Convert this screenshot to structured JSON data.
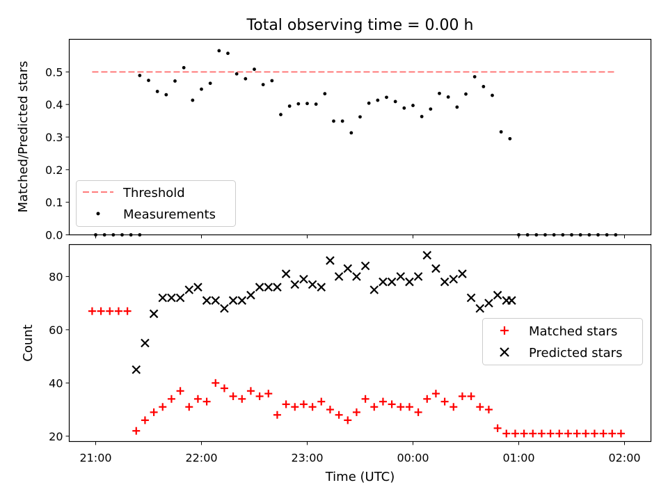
{
  "chart_data": [
    {
      "type": "scatter",
      "title": "Total observing time = 0.00 h",
      "xlabel": "",
      "ylabel": "Matched/Predicted stars",
      "xlim": [
        "20:45",
        "02:15"
      ],
      "ylim": [
        0,
        0.6
      ],
      "yticks": [
        0,
        0.1,
        0.2,
        0.3,
        0.4,
        0.5
      ],
      "ytick_labels": [
        "0.0",
        "0.1",
        "0.2",
        "0.3",
        "0.4",
        "0.5"
      ],
      "grid": false,
      "legend_position": "lower-left",
      "threshold": {
        "name": "Threshold",
        "value": 0.5,
        "x_start": "20:58",
        "x_end": "01:55",
        "color": "#ff7b7b",
        "style": "dashed"
      },
      "series": [
        {
          "name": "Measurements",
          "color": "#000000",
          "marker": "dot",
          "x": [
            "21:00",
            "21:05",
            "21:10",
            "21:15",
            "21:20",
            "21:25",
            "21:30",
            "21:35",
            "21:40",
            "21:45",
            "21:50",
            "21:55",
            "22:00",
            "22:05",
            "22:10",
            "22:15",
            "22:20",
            "22:25",
            "22:30",
            "22:35",
            "22:40",
            "22:45",
            "22:50",
            "22:55",
            "23:00",
            "23:05",
            "23:10",
            "23:15",
            "23:20",
            "23:25",
            "23:30",
            "23:35",
            "23:40",
            "23:45",
            "23:50",
            "23:55",
            "00:00",
            "00:05",
            "00:10",
            "00:15",
            "00:20",
            "00:25",
            "00:30",
            "00:35",
            "00:40",
            "00:45",
            "00:50",
            "00:55",
            "01:00",
            "01:05",
            "01:10",
            "01:15",
            "01:20",
            "01:25",
            "01:30",
            "01:35",
            "01:40",
            "01:45",
            "01:50",
            "01:55",
            "21:25"
          ],
          "y": [
            0,
            0,
            0,
            0,
            0,
            0.489,
            0.474,
            0.44,
            0.43,
            0.472,
            0.513,
            0.413,
            0.447,
            0.465,
            0.565,
            0.557,
            0.494,
            0.479,
            0.508,
            0.461,
            0.473,
            0.369,
            0.395,
            0.402,
            0.403,
            0.401,
            0.433,
            0.349,
            0.349,
            0.313,
            0.362,
            0.404,
            0.413,
            0.422,
            0.409,
            0.389,
            0.397,
            0.363,
            0.386,
            0.434,
            0.423,
            0.392,
            0.432,
            0.485,
            0.455,
            0.428,
            0.316,
            0.295,
            0,
            0,
            0,
            0,
            0,
            0,
            0,
            0,
            0,
            0,
            0,
            0,
            0
          ]
        }
      ]
    },
    {
      "type": "scatter",
      "title": "",
      "xlabel": "Time (UTC)",
      "ylabel": "Count",
      "xlim": [
        "20:45",
        "02:15"
      ],
      "ylim": [
        18,
        92
      ],
      "yticks": [
        20,
        40,
        60,
        80
      ],
      "ytick_labels": [
        "20",
        "40",
        "60",
        "80"
      ],
      "xticks": [
        "21:00",
        "22:00",
        "23:00",
        "00:00",
        "01:00",
        "02:00"
      ],
      "grid": false,
      "legend_position": "right",
      "series": [
        {
          "name": "Matched stars",
          "color": "#ff0000",
          "marker": "plus",
          "x": [
            "20:58",
            "21:03",
            "21:08",
            "21:13",
            "21:18",
            "21:23",
            "21:28",
            "21:33",
            "21:38",
            "21:43",
            "21:48",
            "21:53",
            "21:58",
            "22:03",
            "22:08",
            "22:13",
            "22:18",
            "22:23",
            "22:28",
            "22:33",
            "22:38",
            "22:43",
            "22:48",
            "22:53",
            "22:58",
            "23:03",
            "23:08",
            "23:13",
            "23:18",
            "23:23",
            "23:28",
            "23:33",
            "23:38",
            "23:43",
            "23:48",
            "23:53",
            "23:58",
            "00:03",
            "00:08",
            "00:13",
            "00:18",
            "00:23",
            "00:28",
            "00:33",
            "00:38",
            "00:43",
            "00:48",
            "00:53",
            "00:58",
            "01:03",
            "01:08",
            "01:13",
            "01:18",
            "01:28",
            "01:33",
            "01:38",
            "01:43",
            "01:48",
            "01:53",
            "01:58",
            "01:23"
          ],
          "y": [
            67,
            67,
            67,
            67,
            67,
            22,
            26,
            29,
            31,
            34,
            37,
            31,
            34,
            33,
            40,
            38,
            35,
            34,
            37,
            35,
            36,
            28,
            32,
            31,
            32,
            31,
            33,
            30,
            28,
            26,
            29,
            34,
            31,
            33,
            32,
            31,
            31,
            29,
            34,
            36,
            33,
            31,
            35,
            35,
            31,
            30,
            23,
            21,
            21,
            21,
            21,
            21,
            21,
            21,
            21,
            21,
            21,
            21,
            21,
            21,
            21
          ]
        },
        {
          "name": "Predicted stars",
          "color": "#000000",
          "marker": "x",
          "x": [
            "21:23",
            "21:28",
            "21:33",
            "21:38",
            "21:43",
            "21:48",
            "21:53",
            "21:58",
            "22:03",
            "22:08",
            "22:13",
            "22:18",
            "22:23",
            "22:28",
            "22:33",
            "22:38",
            "22:43",
            "22:48",
            "22:53",
            "22:58",
            "23:03",
            "23:08",
            "23:13",
            "23:18",
            "23:23",
            "23:28",
            "23:33",
            "23:38",
            "23:43",
            "23:48",
            "23:53",
            "23:58",
            "00:03",
            "00:08",
            "00:13",
            "00:18",
            "00:23",
            "00:28",
            "00:33",
            "00:38",
            "00:43",
            "00:48",
            "00:53",
            "00:56"
          ],
          "y": [
            45,
            55,
            66,
            72,
            72,
            72,
            75,
            76,
            71,
            71,
            68,
            71,
            71,
            73,
            76,
            76,
            76,
            81,
            77,
            79,
            77,
            76,
            86,
            80,
            83,
            80,
            84,
            75,
            78,
            78,
            80,
            78,
            80,
            88,
            83,
            78,
            79,
            81,
            72,
            68,
            70,
            73,
            71,
            71
          ]
        }
      ]
    }
  ]
}
